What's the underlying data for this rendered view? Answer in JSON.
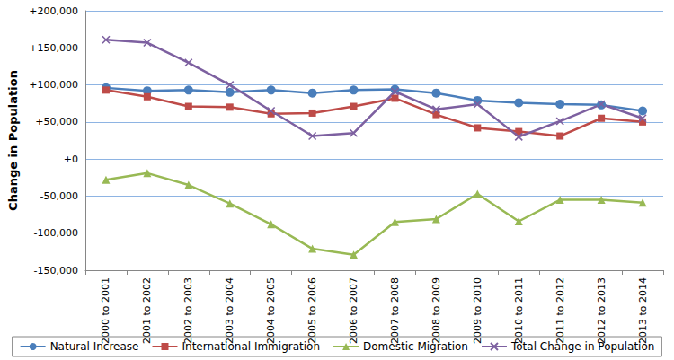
{
  "chart_data": {
    "type": "line",
    "y_label": "Change in Population",
    "categories": [
      "2000 to 2001",
      "2001 to 2002",
      "2002 to 2003",
      "2003 to 2004",
      "2004 to 2005",
      "2005 to 2006",
      "2006 to 2007",
      "2007 to 2008",
      "2008 to 2009",
      "2009 to 2010",
      "2010 to 2011",
      "2011 to 2012",
      "2012 to 2013",
      "2013 to 2014"
    ],
    "series": [
      {
        "name": "Natural Increase",
        "color": "#4a7ebb",
        "marker": "circle",
        "values": [
          96000,
          92000,
          93000,
          90000,
          93000,
          89000,
          93000,
          94000,
          89000,
          79000,
          76000,
          74000,
          73000,
          65000
        ]
      },
      {
        "name": "International Immigration",
        "color": "#be4b48",
        "marker": "square",
        "values": [
          93000,
          84000,
          71000,
          70000,
          61000,
          62000,
          71000,
          82000,
          60000,
          42000,
          37000,
          31000,
          55000,
          50000
        ]
      },
      {
        "name": "Domestic Migration",
        "color": "#98b954",
        "marker": "triangle",
        "values": [
          -28000,
          -19000,
          -35000,
          -60000,
          -88000,
          -121000,
          -129000,
          -85000,
          -81000,
          -47000,
          -84000,
          -55000,
          -55000,
          -59000
        ]
      },
      {
        "name": "Total Change in Population",
        "color": "#7d60a0",
        "marker": "x",
        "values": [
          161000,
          157000,
          130000,
          100000,
          65000,
          31000,
          35000,
          91000,
          67000,
          74000,
          30000,
          51000,
          74000,
          55000
        ]
      }
    ],
    "ylim": [
      -150000,
      200000
    ],
    "yticks": [
      {
        "value": -150000,
        "label": "-150,000"
      },
      {
        "value": -100000,
        "label": "-100,000"
      },
      {
        "value": -50000,
        "label": "-50,000"
      },
      {
        "value": 0,
        "label": "+0"
      },
      {
        "value": 50000,
        "label": "+50,000"
      },
      {
        "value": 100000,
        "label": "+100,000"
      },
      {
        "value": 150000,
        "label": "+150,000"
      },
      {
        "value": 200000,
        "label": "+200,000"
      }
    ],
    "grid": true,
    "legend": "bottom"
  }
}
